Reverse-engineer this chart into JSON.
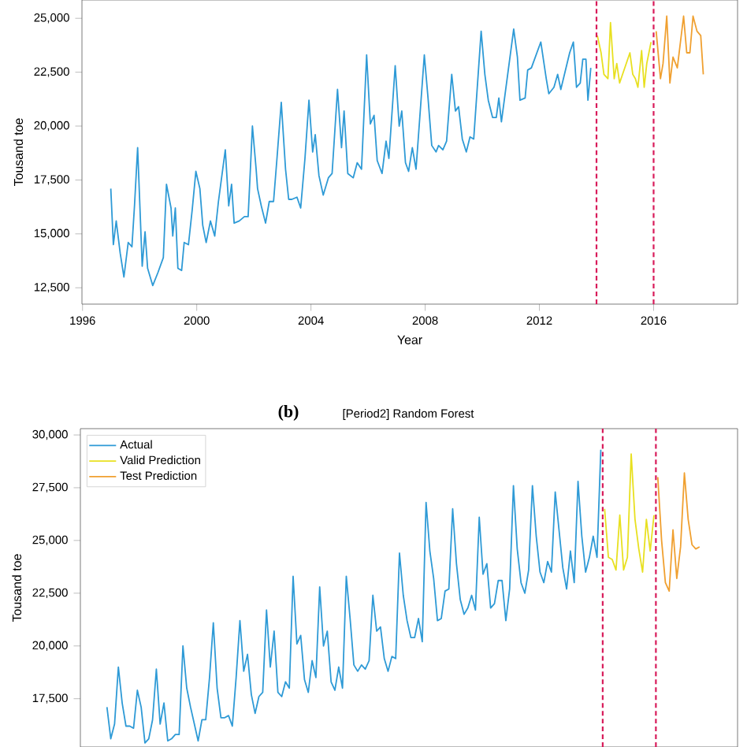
{
  "chart_data": [
    {
      "type": "line",
      "xlabel": "Year",
      "ylabel": "Tousand toe",
      "xlim": [
        1995.98,
        2018.94
      ],
      "ylim": [
        11740,
        25850
      ],
      "xticks": [
        1996,
        2000,
        2004,
        2008,
        2012,
        2016
      ],
      "yticks": [
        {
          "value": 12500,
          "label": "12,500"
        },
        {
          "value": 15000,
          "label": "15,000"
        },
        {
          "value": 17500,
          "label": "17,500"
        },
        {
          "value": 20000,
          "label": "20,000"
        },
        {
          "value": 22500,
          "label": "22,500"
        },
        {
          "value": 25000,
          "label": "25,000"
        }
      ],
      "ref_lines": [
        {
          "axis": "x",
          "value": 2014.0,
          "color": "#d81b5a",
          "line_style": "dashed"
        },
        {
          "axis": "x",
          "value": 2016.0,
          "color": "#d81b5a",
          "line_style": "dashed"
        }
      ],
      "series": [
        {
          "color": "#2e9ad6",
          "x": [
            1996.99,
            1997.08,
            1997.18,
            1997.32,
            1997.45,
            1997.6,
            1997.73,
            1997.82,
            1997.93,
            1998.09,
            1998.19,
            1998.28,
            1998.46,
            1998.64,
            1998.83,
            1998.94,
            1999.1,
            1999.16,
            1999.25,
            1999.34,
            1999.47,
            1999.56,
            1999.71,
            1999.84,
            1999.97,
            2000.11,
            2000.21,
            2000.33,
            2000.48,
            2000.63,
            2000.76,
            2001.0,
            2001.12,
            2001.22,
            2001.31,
            2001.49,
            2001.67,
            2001.8,
            2001.95,
            2002.08,
            2002.13,
            2002.26,
            2002.41,
            2002.54,
            2002.69,
            2002.81,
            2002.96,
            2003.11,
            2003.22,
            2003.33,
            2003.51,
            2003.64,
            2003.79,
            2003.93,
            2004.06,
            2004.15,
            2004.28,
            2004.43,
            2004.61,
            2004.74,
            2004.93,
            2005.07,
            2005.16,
            2005.29,
            2005.48,
            2005.62,
            2005.77,
            2005.95,
            2006.08,
            2006.21,
            2006.32,
            2006.49,
            2006.63,
            2006.73,
            2006.95,
            2007.09,
            2007.18,
            2007.31,
            2007.42,
            2007.55,
            2007.68,
            2007.97,
            2008.1,
            2008.23,
            2008.38,
            2008.47,
            2008.62,
            2008.75,
            2008.93,
            2009.06,
            2009.17,
            2009.3,
            2009.44,
            2009.57,
            2009.7,
            2009.96,
            2010.09,
            2010.21,
            2010.36,
            2010.49,
            2010.58,
            2010.67,
            2011.1,
            2011.23,
            2011.32,
            2011.5,
            2011.59,
            2011.72,
            2012.05,
            2012.24,
            2012.33,
            2012.51,
            2012.64,
            2012.75,
            2013.06,
            2013.19,
            2013.3,
            2013.43,
            2013.52,
            2013.63,
            2013.7,
            2013.8
          ],
          "values": [
            17100,
            14500,
            15600,
            14100,
            13000,
            14600,
            14400,
            16300,
            19000,
            13500,
            15100,
            13400,
            12600,
            13200,
            13900,
            17300,
            16200,
            14900,
            16200,
            13400,
            13300,
            14600,
            14500,
            16100,
            17900,
            17100,
            15400,
            14600,
            15600,
            14900,
            16500,
            18900,
            16300,
            17300,
            15500,
            15600,
            15800,
            15800,
            20000,
            18000,
            17100,
            16300,
            15500,
            16500,
            16500,
            18500,
            21100,
            18000,
            16600,
            16600,
            16700,
            16200,
            18500,
            21200,
            18800,
            19600,
            17700,
            16800,
            17600,
            17800,
            21700,
            19000,
            20700,
            17800,
            17600,
            18300,
            18000,
            23300,
            20100,
            20500,
            18400,
            17800,
            19300,
            18500,
            22800,
            20000,
            20700,
            18300,
            17900,
            19000,
            18000,
            23300,
            21300,
            19100,
            18800,
            19100,
            18900,
            19300,
            22400,
            20700,
            20900,
            19400,
            18800,
            19500,
            19400,
            24400,
            22400,
            21200,
            20400,
            20400,
            21300,
            20200,
            24500,
            23200,
            21200,
            21300,
            22600,
            22700,
            23900,
            22200,
            21500,
            21800,
            22400,
            21700,
            23400,
            23900,
            21800,
            22000,
            23100,
            23100,
            21200,
            22700
          ]
        },
        {
          "color": "#e8e020",
          "x": [
            2014.03,
            2014.16,
            2014.26,
            2014.4,
            2014.49,
            2014.62,
            2014.71,
            2014.81,
            2015.17,
            2015.27,
            2015.36,
            2015.45,
            2015.58,
            2015.67,
            2015.76,
            2015.91
          ],
          "values": [
            24200,
            23400,
            22400,
            22200,
            24800,
            22200,
            22900,
            22000,
            23400,
            22400,
            22200,
            21800,
            23500,
            21800,
            22900,
            23900
          ]
        },
        {
          "color": "#f0a030",
          "x": [
            2016.09,
            2016.24,
            2016.33,
            2016.46,
            2016.57,
            2016.68,
            2016.83,
            2017.05,
            2017.16,
            2017.27,
            2017.38,
            2017.52,
            2017.65,
            2017.74
          ],
          "values": [
            24400,
            22200,
            22900,
            25100,
            22000,
            23200,
            22700,
            25100,
            23400,
            23400,
            25100,
            24400,
            24200,
            22400
          ]
        }
      ]
    },
    {
      "type": "line",
      "title": "[Period2] Random Forest",
      "annotations": [
        "(b)"
      ],
      "ylabel": "Tousand toe",
      "legend": "top left",
      "tick_labels": "y",
      "categories": [
        null,
        null,
        null,
        null,
        null,
        null,
        null,
        null,
        null,
        null,
        null,
        null,
        null,
        null,
        null,
        null,
        null,
        null,
        null,
        null,
        null,
        null,
        null,
        null,
        null,
        null,
        null,
        null,
        null,
        null,
        null,
        null,
        null,
        null,
        null,
        null,
        null,
        null,
        null,
        null,
        null,
        null,
        null,
        null,
        null,
        null,
        null,
        null,
        null,
        null,
        null,
        null,
        null,
        null,
        null,
        null,
        null,
        null,
        null,
        null,
        null,
        null,
        null,
        null,
        null,
        null,
        null,
        null,
        null,
        null,
        null,
        null,
        null,
        null,
        null,
        null,
        null,
        null,
        null,
        null,
        null,
        null,
        null,
        null,
        null,
        null,
        null,
        null,
        null,
        null,
        null,
        null,
        null,
        null,
        null,
        null,
        null,
        null,
        null,
        null,
        null,
        null,
        null,
        null,
        null,
        null,
        null,
        null,
        null,
        null,
        null,
        null,
        null,
        null,
        null,
        null,
        null,
        null,
        null,
        null,
        null,
        null,
        null,
        null,
        null,
        null,
        null,
        null,
        null,
        null,
        null,
        null,
        null,
        null,
        null,
        null,
        null,
        null,
        null,
        null,
        null,
        null,
        null,
        null,
        null,
        null,
        null,
        null,
        null,
        null,
        null,
        null,
        null,
        null,
        null,
        null,
        null
      ],
      "ylim": [
        15210,
        30300
      ],
      "yticks": [
        {
          "value": 17500,
          "label": "17,500"
        },
        {
          "value": 20000,
          "label": "20,000"
        },
        {
          "value": 22500,
          "label": "22,500"
        },
        {
          "value": 25000,
          "label": "25,000"
        },
        {
          "value": 27500,
          "label": "27,500"
        },
        {
          "value": 30000,
          "label": "30,000"
        }
      ],
      "series": [
        {
          "name": "Actual",
          "color": "#2e9ad6",
          "values": [
            17100,
            15600,
            16300,
            19000,
            17300,
            16200,
            16200,
            16100,
            17900,
            17100,
            15400,
            15600,
            16500,
            18900,
            16300,
            17300,
            15500,
            15600,
            15800,
            15800,
            20000,
            18000,
            17100,
            16300,
            15500,
            16500,
            16500,
            18500,
            21100,
            18000,
            16600,
            16600,
            16700,
            16200,
            18500,
            21200,
            18800,
            19600,
            17700,
            16800,
            17600,
            17800,
            21700,
            19000,
            20700,
            17800,
            17600,
            18300,
            18000,
            23300,
            20100,
            20500,
            18400,
            17800,
            19300,
            18500,
            22800,
            20000,
            20700,
            18300,
            17900,
            19000,
            18000,
            23300,
            21300,
            19100,
            18800,
            19100,
            18900,
            19300,
            22400,
            20700,
            20900,
            19400,
            18800,
            19500,
            19400,
            24400,
            22400,
            21200,
            20400,
            20400,
            21300,
            20200,
            26800,
            24500,
            23200,
            21200,
            21300,
            22600,
            22700,
            26500,
            23900,
            22200,
            21500,
            21800,
            22400,
            21700,
            26100,
            23400,
            23900,
            21800,
            22000,
            23100,
            23100,
            21200,
            22700,
            27600,
            24600,
            23000,
            22500,
            23600,
            27600,
            25200,
            23500,
            23000,
            24000,
            23500,
            27300,
            25500,
            23700,
            22700,
            24500,
            23000,
            27800,
            25200,
            23500,
            24200,
            25200,
            24200,
            29300,
            null,
            null,
            null,
            null,
            null,
            null,
            null,
            null,
            null,
            null,
            null,
            null,
            null,
            null,
            null,
            null,
            null,
            null,
            null,
            null,
            null,
            null,
            null,
            null,
            null,
            null
          ]
        },
        {
          "name": "Valid Prediction",
          "color": "#e8e020",
          "values": [
            null,
            null,
            null,
            null,
            null,
            null,
            null,
            null,
            null,
            null,
            null,
            null,
            null,
            null,
            null,
            null,
            null,
            null,
            null,
            null,
            null,
            null,
            null,
            null,
            null,
            null,
            null,
            null,
            null,
            null,
            null,
            null,
            null,
            null,
            null,
            null,
            null,
            null,
            null,
            null,
            null,
            null,
            null,
            null,
            null,
            null,
            null,
            null,
            null,
            null,
            null,
            null,
            null,
            null,
            null,
            null,
            null,
            null,
            null,
            null,
            null,
            null,
            null,
            null,
            null,
            null,
            null,
            null,
            null,
            null,
            null,
            null,
            null,
            null,
            null,
            null,
            null,
            null,
            null,
            null,
            null,
            null,
            null,
            null,
            null,
            null,
            null,
            null,
            null,
            null,
            null,
            null,
            null,
            null,
            null,
            null,
            null,
            null,
            null,
            null,
            null,
            null,
            null,
            null,
            null,
            null,
            null,
            null,
            null,
            null,
            null,
            null,
            null,
            null,
            null,
            null,
            null,
            null,
            null,
            null,
            null,
            null,
            null,
            null,
            null,
            null,
            null,
            null,
            null,
            null,
            null,
            26500,
            24200,
            24100,
            23600,
            26200,
            23600,
            24200,
            29100,
            26000,
            24600,
            23500,
            26000,
            24500,
            26200,
            null,
            null,
            null,
            null,
            null,
            null,
            null,
            null,
            null,
            null,
            null,
            null
          ]
        },
        {
          "name": "Test Prediction",
          "color": "#f0a030",
          "values": [
            null,
            null,
            null,
            null,
            null,
            null,
            null,
            null,
            null,
            null,
            null,
            null,
            null,
            null,
            null,
            null,
            null,
            null,
            null,
            null,
            null,
            null,
            null,
            null,
            null,
            null,
            null,
            null,
            null,
            null,
            null,
            null,
            null,
            null,
            null,
            null,
            null,
            null,
            null,
            null,
            null,
            null,
            null,
            null,
            null,
            null,
            null,
            null,
            null,
            null,
            null,
            null,
            null,
            null,
            null,
            null,
            null,
            null,
            null,
            null,
            null,
            null,
            null,
            null,
            null,
            null,
            null,
            null,
            null,
            null,
            null,
            null,
            null,
            null,
            null,
            null,
            null,
            null,
            null,
            null,
            null,
            null,
            null,
            null,
            null,
            null,
            null,
            null,
            null,
            null,
            null,
            null,
            null,
            null,
            null,
            null,
            null,
            null,
            null,
            null,
            null,
            null,
            null,
            null,
            null,
            null,
            null,
            null,
            null,
            null,
            null,
            null,
            null,
            null,
            null,
            null,
            null,
            null,
            null,
            null,
            null,
            null,
            null,
            null,
            null,
            null,
            null,
            null,
            null,
            null,
            null,
            null,
            null,
            null,
            null,
            null,
            null,
            null,
            null,
            null,
            null,
            null,
            null,
            null,
            null,
            28000,
            25000,
            23000,
            22600,
            25500,
            23200,
            24700,
            28200,
            26000,
            24800,
            24600,
            24700
          ]
        }
      ]
    }
  ]
}
